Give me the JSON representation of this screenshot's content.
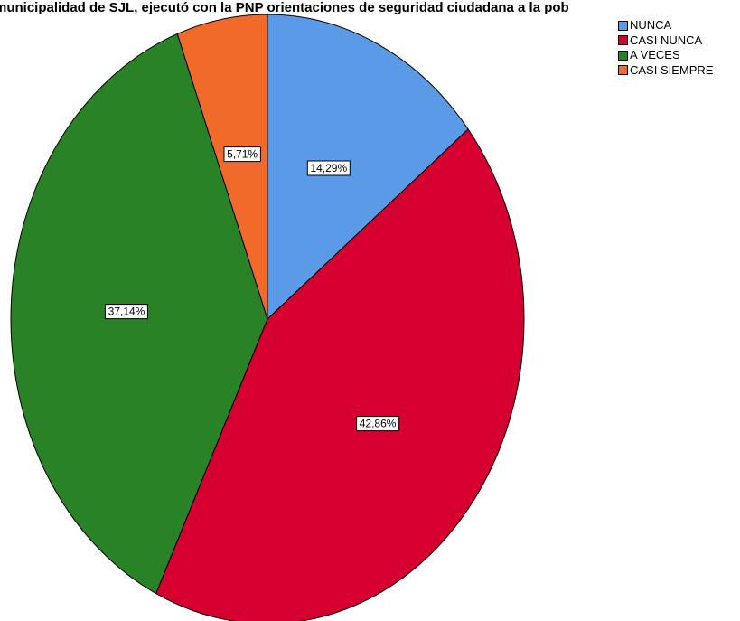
{
  "chart_data": {
    "type": "pie",
    "title": "municipalidad de SJL, ejecutó con la PNP orientaciones de seguridad ciudadana a la pob",
    "categories": [
      "NUNCA",
      "CASI NUNCA",
      "A VECES",
      "CASI SIEMPRE"
    ],
    "values": [
      14.29,
      42.86,
      37.14,
      5.71
    ],
    "value_labels": [
      "14,29%",
      "42,86%",
      "37,14%",
      "5,71%"
    ],
    "colors": [
      "#5a9ae6",
      "#d5002f",
      "#2a8227",
      "#f26a2a"
    ],
    "start_angle_deg": 0,
    "direction": "clockwise",
    "legend_position": "top-right"
  }
}
